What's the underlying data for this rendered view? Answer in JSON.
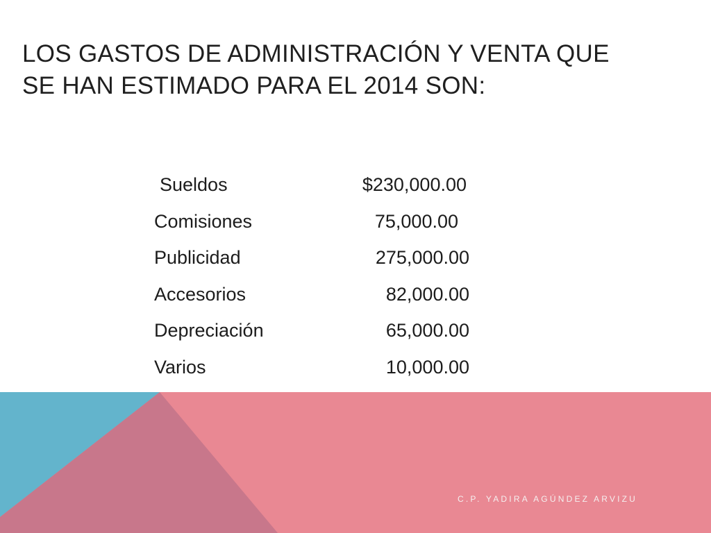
{
  "slide": {
    "title_lines": [
      "LOS GASTOS DE ADMINISTRACIÓN Y VENTA QUE",
      "SE HAN ESTIMADO PARA EL 2014 SON:"
    ],
    "expenses": [
      {
        "concept": "Sueldos",
        "amount": "$230,000.00"
      },
      {
        "concept": "Comisiones",
        "amount": "75,000.00"
      },
      {
        "concept": "Publicidad",
        "amount": "275,000.00"
      },
      {
        "concept": "Accesorios",
        "amount": "82,000.00"
      },
      {
        "concept": "Depreciación",
        "amount": "65,000.00"
      },
      {
        "concept": "Varios",
        "amount": "10,000.00"
      }
    ],
    "footer": "C.P. YADIRA AGÚNDEZ ARVIZU"
  },
  "colors": {
    "banner_pink": "#E98893",
    "banner_blue": "#63B4CC",
    "banner_mauve": "#C8778B"
  }
}
